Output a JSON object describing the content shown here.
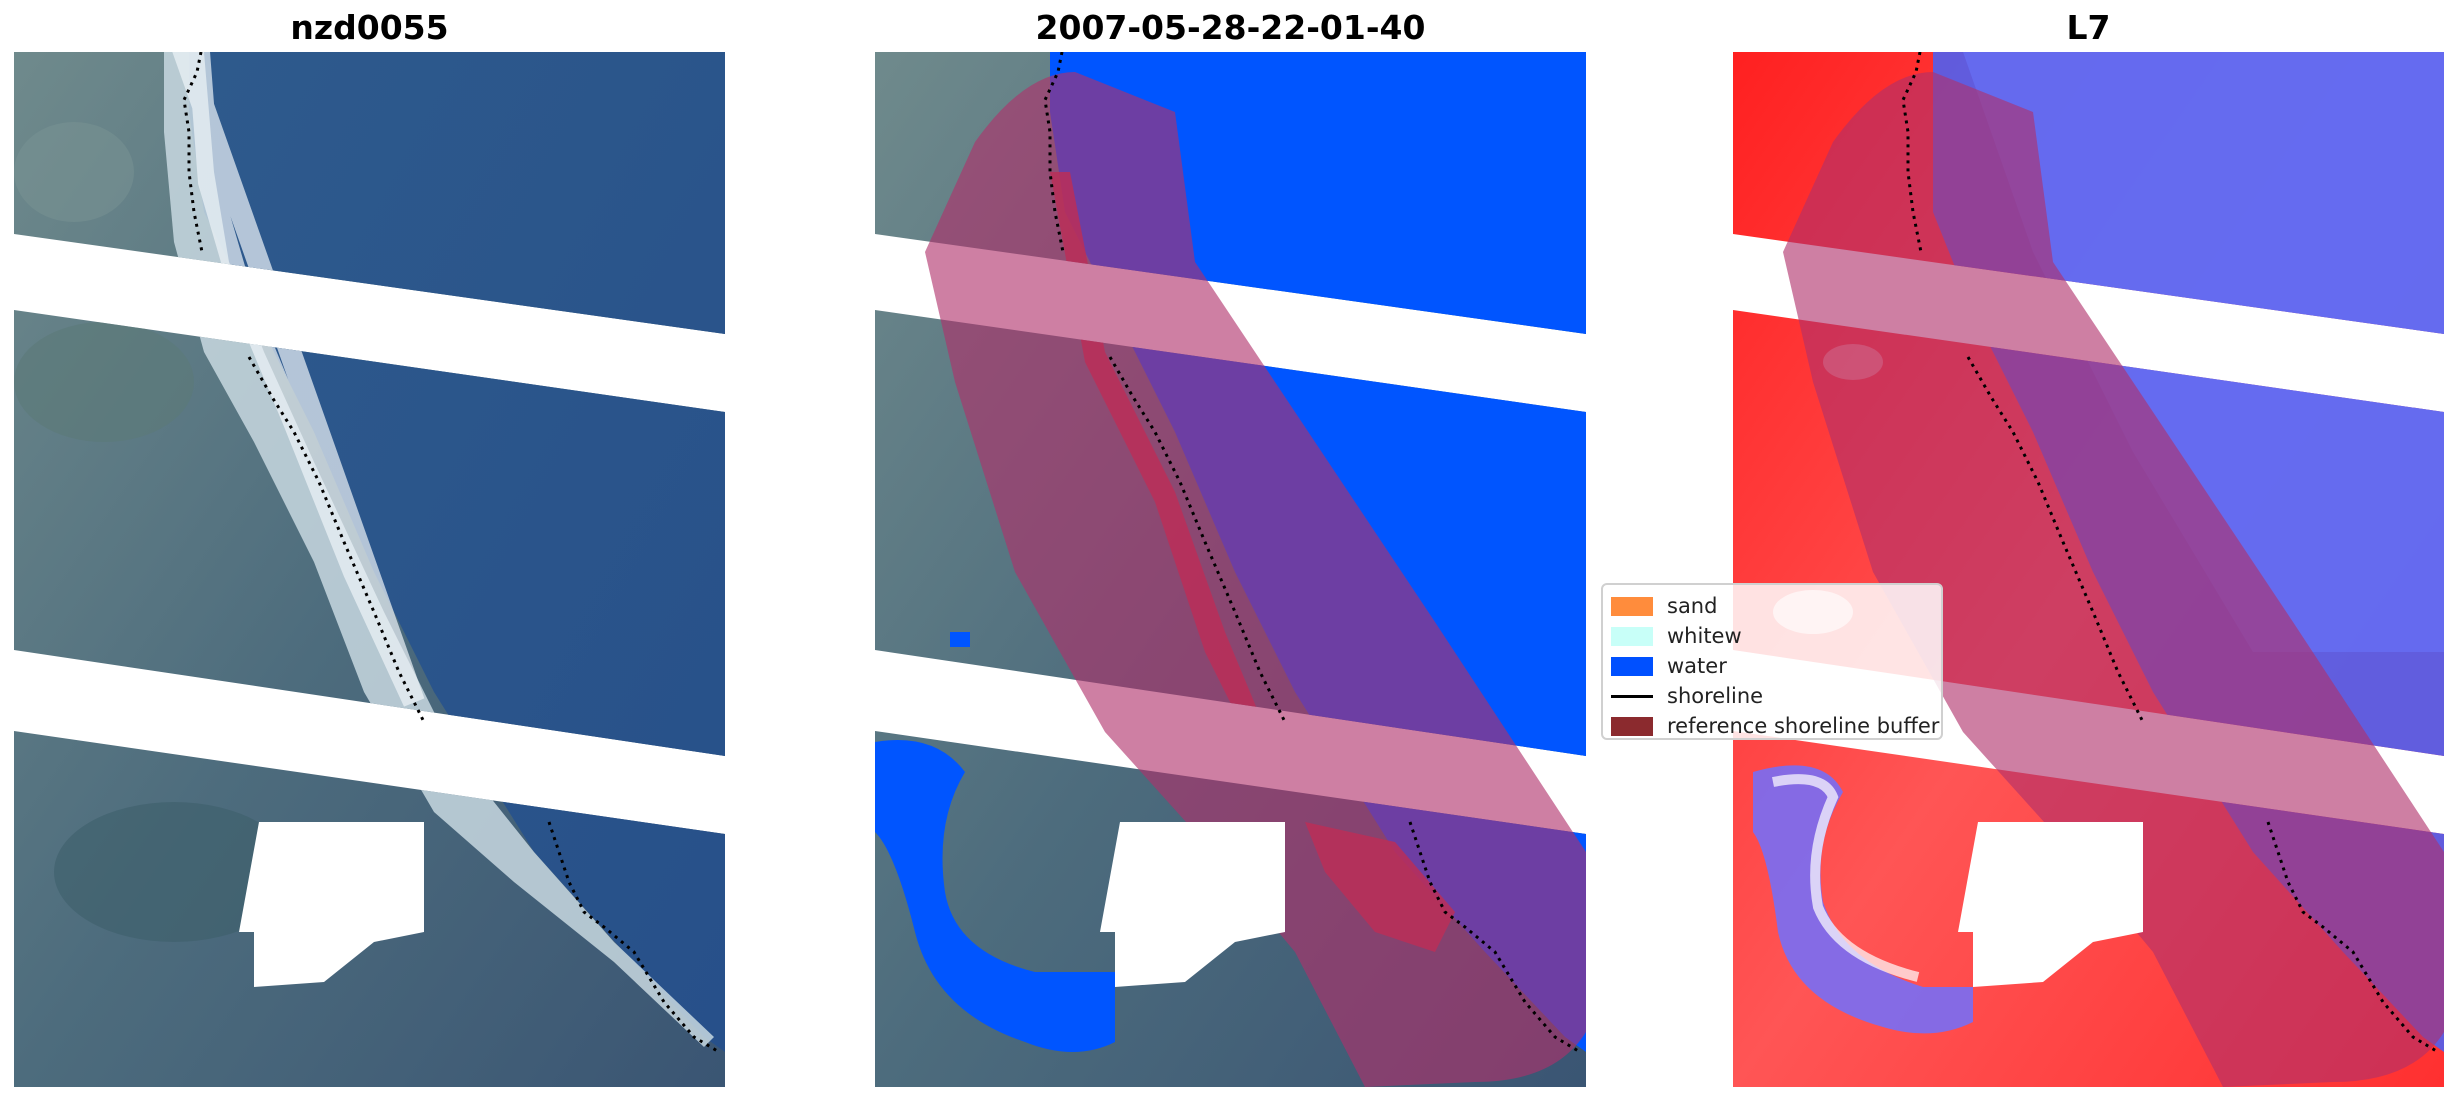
{
  "panels": [
    {
      "title": "nzd0055"
    },
    {
      "title": "2007-05-28-22-01-40"
    },
    {
      "title": "L7"
    }
  ],
  "legend": {
    "items": [
      {
        "label": "sand",
        "color": "#ff8c3c",
        "kind": "patch"
      },
      {
        "label": "whitew",
        "color": "#c8fff8",
        "kind": "patch"
      },
      {
        "label": "water",
        "color": "#0050ff",
        "kind": "patch"
      },
      {
        "label": "shoreline",
        "color": "#000000",
        "kind": "line"
      },
      {
        "label": "reference shoreline buffer",
        "color": "#8b2a2e",
        "kind": "patch"
      }
    ]
  },
  "colors": {
    "water_class": "#0055ff",
    "buffer_overlay": "#b0306a",
    "land_index": "#ff2222",
    "water_index": "#4455ff"
  }
}
